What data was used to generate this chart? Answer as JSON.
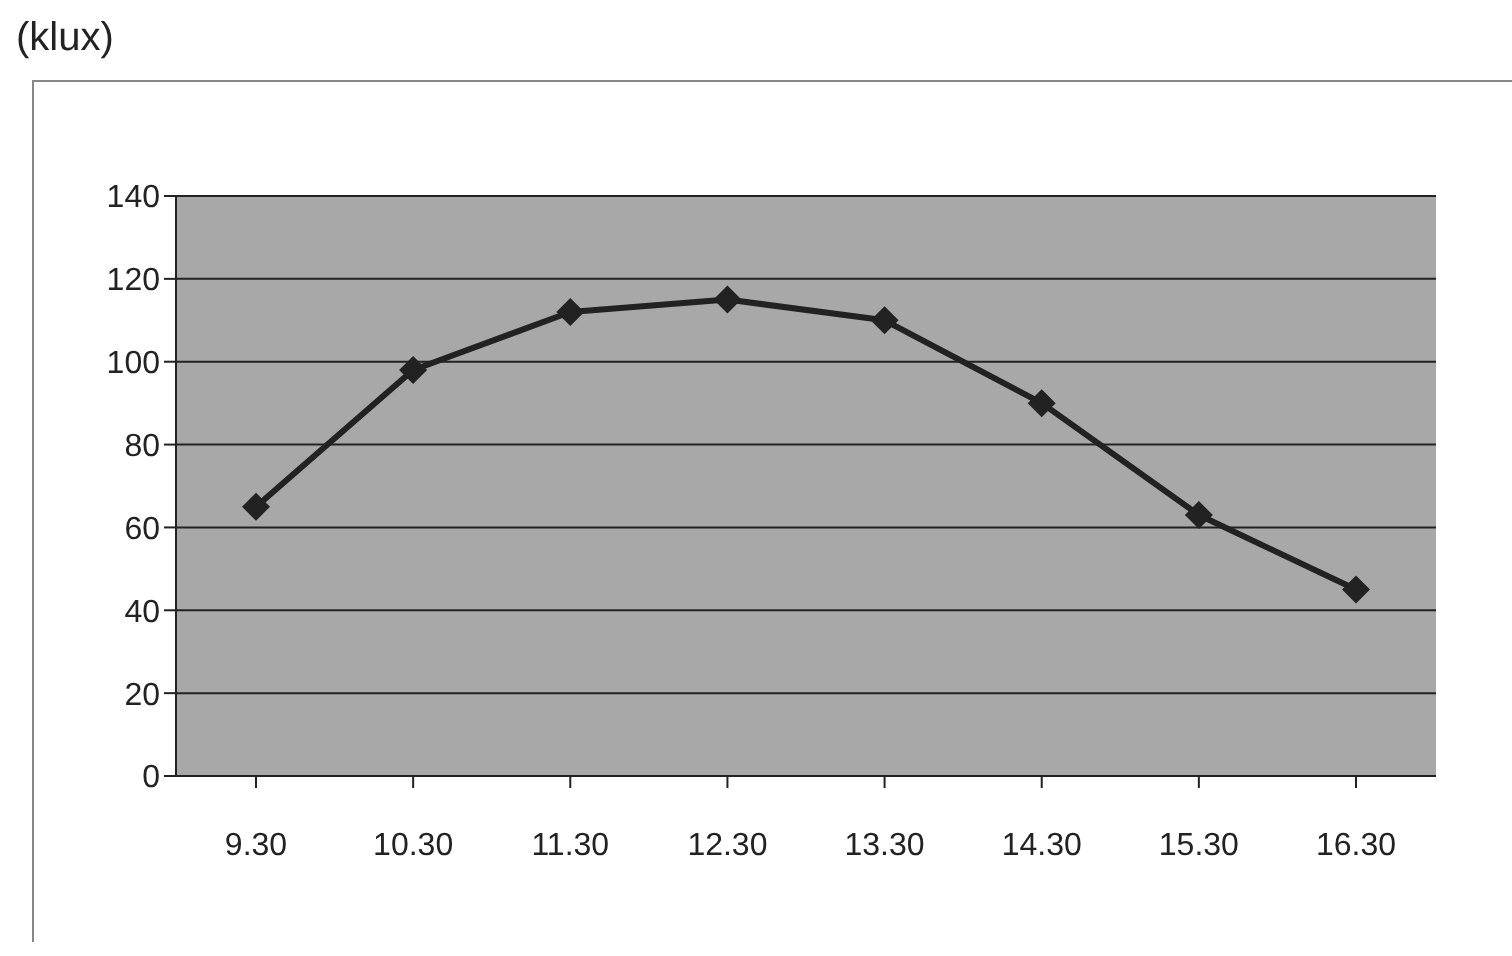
{
  "chart_data": {
    "type": "line",
    "ylabel": "(klux)",
    "categories": [
      "9.30",
      "10.30",
      "11.30",
      "12.30",
      "13.30",
      "14.30",
      "15.30",
      "16.30"
    ],
    "series": [
      {
        "color": "#222222",
        "values": [
          65,
          98,
          112,
          115,
          110,
          90,
          63,
          45
        ]
      }
    ],
    "ylim": [
      0,
      140
    ],
    "yticks": [
      0,
      20,
      40,
      60,
      80,
      100,
      120,
      140
    ],
    "grid": "y",
    "marker": "diamond",
    "line_style": "solid"
  }
}
